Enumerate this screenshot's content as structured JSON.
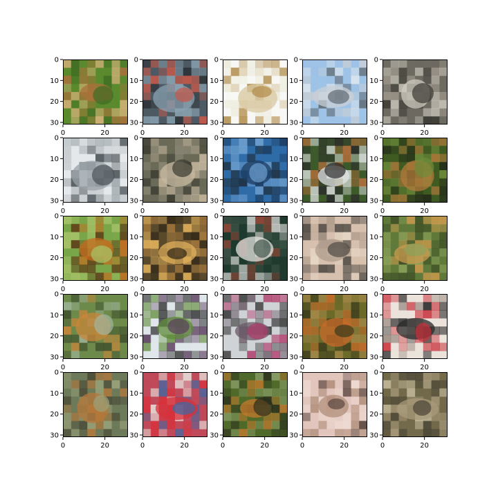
{
  "figure": {
    "rows": 5,
    "cols": 5,
    "background": "#ffffff",
    "axes_color": "#000000"
  },
  "chart_data": {
    "type": "image-grid",
    "title": "",
    "xlabel": "",
    "ylabel": "",
    "image_size": [
      32,
      32
    ],
    "xlim": [
      0,
      31
    ],
    "ylim": [
      31,
      0
    ],
    "x_ticks": [
      "0",
      "20"
    ],
    "y_ticks": [
      "0",
      "10",
      "20",
      "30"
    ],
    "grid": false,
    "panels": [
      {
        "row": 0,
        "col": 0,
        "palette": [
          "#5b8a2e",
          "#a9713a",
          "#3e6b23",
          "#d6b27a"
        ]
      },
      {
        "row": 0,
        "col": 1,
        "palette": [
          "#4d5a63",
          "#8aa2b2",
          "#c7594a",
          "#2c3135"
        ]
      },
      {
        "row": 0,
        "col": 2,
        "palette": [
          "#f7f7f5",
          "#d9c9a3",
          "#b08b4a",
          "#ecead9"
        ]
      },
      {
        "row": 0,
        "col": 3,
        "palette": [
          "#9ec3e6",
          "#c9cfd6",
          "#5f6a72",
          "#e6ebef"
        ]
      },
      {
        "row": 0,
        "col": 4,
        "palette": [
          "#6d6a62",
          "#cfcbc0",
          "#3b3933",
          "#9c958a"
        ]
      },
      {
        "row": 1,
        "col": 0,
        "palette": [
          "#e5e8ea",
          "#9aa3a8",
          "#4b5358",
          "#c3c9cc"
        ]
      },
      {
        "row": 1,
        "col": 1,
        "palette": [
          "#6a6a58",
          "#c8b9a0",
          "#3a3a30",
          "#8f8a78"
        ]
      },
      {
        "row": 1,
        "col": 2,
        "palette": [
          "#2f6ca8",
          "#1d3e62",
          "#6fa0cf",
          "#203142"
        ]
      },
      {
        "row": 1,
        "col": 3,
        "palette": [
          "#3d5a2a",
          "#e1e4e4",
          "#2a2a2a",
          "#b36f3c"
        ]
      },
      {
        "row": 1,
        "col": 4,
        "palette": [
          "#3f5b22",
          "#b07a3b",
          "#6d8b3a",
          "#222a18"
        ]
      },
      {
        "row": 2,
        "col": 0,
        "palette": [
          "#7aa64a",
          "#c46a1e",
          "#a8c46a",
          "#5d3a16"
        ]
      },
      {
        "row": 2,
        "col": 1,
        "palette": [
          "#5a4a2c",
          "#e2b25c",
          "#2d2416",
          "#a67a3e"
        ]
      },
      {
        "row": 2,
        "col": 2,
        "palette": [
          "#1f3a2e",
          "#e3e1de",
          "#3d5247",
          "#9b4a3a"
        ]
      },
      {
        "row": 2,
        "col": 3,
        "palette": [
          "#d7c1ae",
          "#b09c8c",
          "#4f4a44",
          "#e8d8c8"
        ]
      },
      {
        "row": 2,
        "col": 4,
        "palette": [
          "#5f7a3a",
          "#c99a4e",
          "#8da25b",
          "#3b4a24"
        ]
      },
      {
        "row": 3,
        "col": 0,
        "palette": [
          "#6d8a4a",
          "#c8853a",
          "#a3b7a0",
          "#3d4d2c"
        ]
      },
      {
        "row": 3,
        "col": 1,
        "palette": [
          "#dfe6e9",
          "#5f8a3a",
          "#5a3f5e",
          "#2a2a2a"
        ]
      },
      {
        "row": 3,
        "col": 2,
        "palette": [
          "#cfd3d6",
          "#6a5a68",
          "#b03a6a",
          "#3a3a3a"
        ]
      },
      {
        "row": 3,
        "col": 3,
        "palette": [
          "#6b6a2a",
          "#c86b2a",
          "#3a3a1c",
          "#a78a4a"
        ]
      },
      {
        "row": 3,
        "col": 4,
        "palette": [
          "#ebe3db",
          "#2a2a2a",
          "#c8303a",
          "#8a7a72"
        ]
      },
      {
        "row": 4,
        "col": 0,
        "palette": [
          "#6d7a5a",
          "#b5773a",
          "#9aa37a",
          "#4a4a36"
        ]
      },
      {
        "row": 4,
        "col": 1,
        "palette": [
          "#c04a5a",
          "#d8303a",
          "#3a6aa6",
          "#e6ded8"
        ]
      },
      {
        "row": 4,
        "col": 2,
        "palette": [
          "#4f6a2a",
          "#c57a2e",
          "#2a2e1c",
          "#8da26b"
        ]
      },
      {
        "row": 4,
        "col": 3,
        "palette": [
          "#e2c6bd",
          "#b08e7a",
          "#5b463e",
          "#efdcd4"
        ]
      },
      {
        "row": 4,
        "col": 4,
        "palette": [
          "#726a4a",
          "#a89a7a",
          "#4a4536",
          "#c2b89a"
        ]
      }
    ]
  }
}
